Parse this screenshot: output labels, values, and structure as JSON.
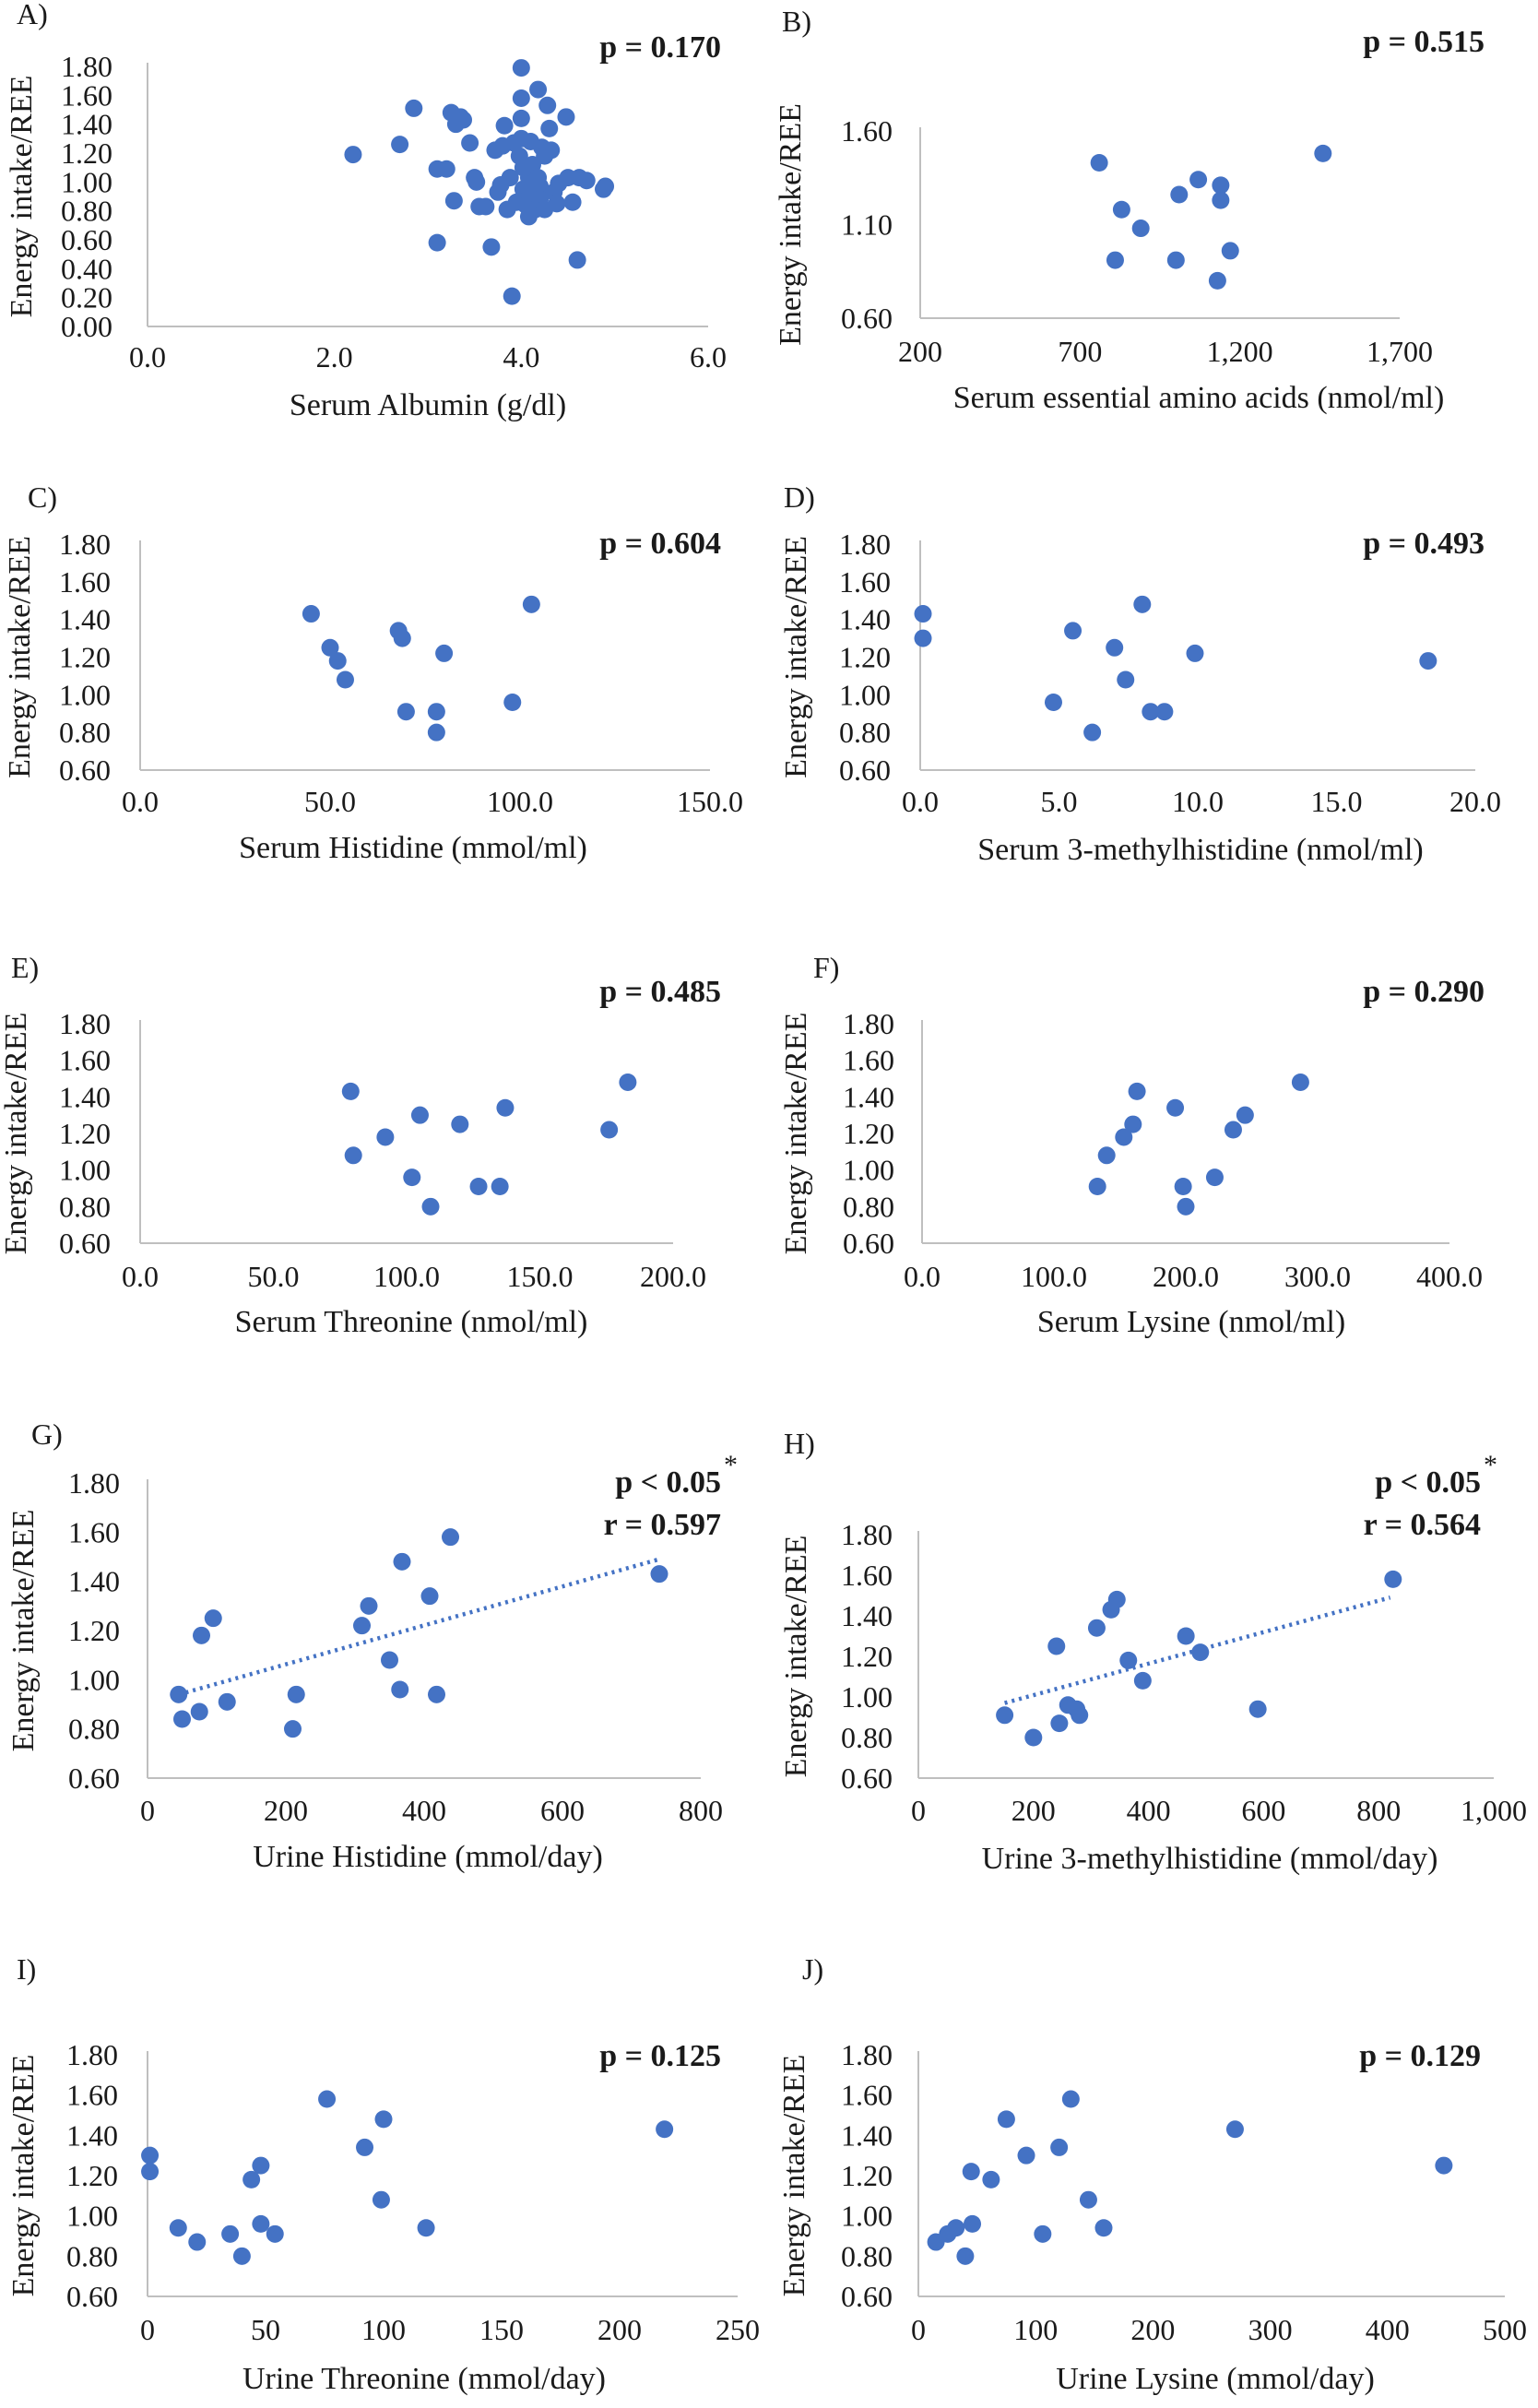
{
  "colors": {
    "marker": "#4472c4",
    "trend": "#4472c4",
    "axis": "#bfbfbf",
    "text": "#1a1a1a"
  },
  "chart_data": [
    {
      "id": "A",
      "type": "scatter",
      "panel_label": "A)",
      "xlabel": "Serum Albumin (g/dl)",
      "ylabel": "Energy intake/REE",
      "xlim": [
        0,
        6
      ],
      "ylim": [
        0,
        1.8
      ],
      "xticks": [
        "0.0",
        "2.0",
        "4.0",
        "6.0"
      ],
      "yticks": [
        "0.00",
        "0.20",
        "0.40",
        "0.60",
        "0.80",
        "1.00",
        "1.20",
        "1.40",
        "1.60",
        "1.80"
      ],
      "stat_lines": [
        {
          "text": "p = 0.170"
        }
      ],
      "points": [
        [
          2.2,
          1.19
        ],
        [
          2.7,
          1.26
        ],
        [
          2.85,
          1.51
        ],
        [
          3.1,
          0.58
        ],
        [
          3.1,
          1.09
        ],
        [
          3.2,
          1.09
        ],
        [
          3.25,
          1.48
        ],
        [
          3.28,
          0.87
        ],
        [
          3.3,
          1.4
        ],
        [
          3.35,
          1.45
        ],
        [
          3.38,
          1.43
        ],
        [
          3.45,
          1.27
        ],
        [
          3.5,
          1.03
        ],
        [
          3.52,
          1.0
        ],
        [
          3.55,
          0.83
        ],
        [
          3.62,
          0.83
        ],
        [
          3.68,
          0.55
        ],
        [
          3.72,
          1.22
        ],
        [
          3.75,
          0.93
        ],
        [
          3.78,
          0.98
        ],
        [
          3.8,
          1.25
        ],
        [
          3.82,
          1.39
        ],
        [
          3.85,
          0.81
        ],
        [
          3.88,
          1.03
        ],
        [
          3.9,
          0.21
        ],
        [
          3.92,
          1.27
        ],
        [
          3.95,
          0.86
        ],
        [
          3.98,
          1.18
        ],
        [
          4.0,
          1.79
        ],
        [
          4.0,
          1.58
        ],
        [
          4.0,
          1.44
        ],
        [
          4.0,
          1.3
        ],
        [
          4.02,
          1.1
        ],
        [
          4.02,
          0.95
        ],
        [
          4.05,
          0.87
        ],
        [
          4.05,
          0.84
        ],
        [
          4.08,
          1.03
        ],
        [
          4.08,
          0.76
        ],
        [
          4.1,
          1.28
        ],
        [
          4.12,
          1.12
        ],
        [
          4.12,
          0.99
        ],
        [
          4.15,
          0.9
        ],
        [
          4.15,
          0.81
        ],
        [
          4.18,
          1.64
        ],
        [
          4.18,
          1.03
        ],
        [
          4.2,
          0.97
        ],
        [
          4.2,
          0.88
        ],
        [
          4.22,
          1.24
        ],
        [
          4.25,
          0.81
        ],
        [
          4.25,
          1.18
        ],
        [
          4.28,
          1.53
        ],
        [
          4.3,
          1.37
        ],
        [
          4.32,
          1.22
        ],
        [
          4.35,
          0.93
        ],
        [
          4.38,
          0.85
        ],
        [
          4.4,
          0.99
        ],
        [
          4.48,
          1.45
        ],
        [
          4.5,
          1.03
        ],
        [
          4.55,
          0.86
        ],
        [
          4.6,
          0.46
        ],
        [
          4.62,
          1.03
        ],
        [
          4.7,
          1.01
        ],
        [
          4.88,
          0.95
        ],
        [
          4.9,
          0.97
        ]
      ]
    },
    {
      "id": "B",
      "type": "scatter",
      "panel_label": "B)",
      "xlabel": "Serum essential amino acids (nmol/ml)",
      "ylabel": "Energy intake/REE",
      "xlim": [
        200,
        1700
      ],
      "ylim": [
        0.6,
        1.6
      ],
      "xticks": [
        "200",
        "700",
        "1,200",
        "1,700"
      ],
      "yticks": [
        "0.60",
        "1.10",
        "1.60"
      ],
      "stat_lines": [
        {
          "text": "p = 0.515"
        }
      ],
      "points": [
        [
          760,
          1.43
        ],
        [
          810,
          0.91
        ],
        [
          830,
          1.18
        ],
        [
          890,
          1.08
        ],
        [
          1000,
          0.91
        ],
        [
          1010,
          1.26
        ],
        [
          1070,
          1.34
        ],
        [
          1130,
          0.8
        ],
        [
          1140,
          1.23
        ],
        [
          1140,
          1.31
        ],
        [
          1170,
          0.96
        ],
        [
          1460,
          1.48
        ]
      ]
    },
    {
      "id": "C",
      "type": "scatter",
      "panel_label": "C)",
      "xlabel": "Serum Histidine (mmol/ml)",
      "ylabel": "Energy intake/REE",
      "xlim": [
        0,
        150
      ],
      "ylim": [
        0.6,
        1.8
      ],
      "xticks": [
        "0.0",
        "50.0",
        "100.0",
        "150.0"
      ],
      "yticks": [
        "0.60",
        "0.80",
        "1.00",
        "1.20",
        "1.40",
        "1.60",
        "1.80"
      ],
      "stat_lines": [
        {
          "text": "p = 0.604"
        }
      ],
      "points": [
        [
          45,
          1.43
        ],
        [
          50,
          1.25
        ],
        [
          52,
          1.18
        ],
        [
          54,
          1.08
        ],
        [
          68,
          1.34
        ],
        [
          69,
          1.3
        ],
        [
          70,
          0.91
        ],
        [
          78,
          0.91
        ],
        [
          78,
          0.8
        ],
        [
          80,
          1.22
        ],
        [
          98,
          0.96
        ],
        [
          103,
          1.48
        ]
      ]
    },
    {
      "id": "D",
      "type": "scatter",
      "panel_label": "D)",
      "xlabel": "Serum 3-methylhistidine (nmol/ml)",
      "ylabel": "Energy intake/REE",
      "xlim": [
        0,
        20
      ],
      "ylim": [
        0.6,
        1.8
      ],
      "xticks": [
        "0.0",
        "5.0",
        "10.0",
        "15.0",
        "20.0"
      ],
      "yticks": [
        "0.60",
        "0.80",
        "1.00",
        "1.20",
        "1.40",
        "1.60",
        "1.80"
      ],
      "stat_lines": [
        {
          "text": "p = 0.493"
        }
      ],
      "points": [
        [
          0.1,
          1.43
        ],
        [
          0.1,
          1.3
        ],
        [
          4.8,
          0.96
        ],
        [
          5.5,
          1.34
        ],
        [
          6.2,
          0.8
        ],
        [
          7.0,
          1.25
        ],
        [
          7.4,
          1.08
        ],
        [
          8.0,
          1.48
        ],
        [
          8.3,
          0.91
        ],
        [
          8.8,
          0.91
        ],
        [
          9.9,
          1.22
        ],
        [
          18.3,
          1.18
        ]
      ]
    },
    {
      "id": "E",
      "type": "scatter",
      "panel_label": "E)",
      "xlabel": "Serum Threonine (nmol/ml)",
      "ylabel": "Energy intake/REE",
      "xlim": [
        0,
        200
      ],
      "ylim": [
        0.6,
        1.8
      ],
      "xticks": [
        "0.0",
        "50.0",
        "100.0",
        "150.0",
        "200.0"
      ],
      "yticks": [
        "0.60",
        "0.80",
        "1.00",
        "1.20",
        "1.40",
        "1.60",
        "1.80"
      ],
      "stat_lines": [
        {
          "text": "p = 0.485"
        }
      ],
      "points": [
        [
          79,
          1.43
        ],
        [
          80,
          1.08
        ],
        [
          92,
          1.18
        ],
        [
          102,
          0.96
        ],
        [
          105,
          1.3
        ],
        [
          109,
          0.8
        ],
        [
          120,
          1.25
        ],
        [
          127,
          0.91
        ],
        [
          135,
          0.91
        ],
        [
          137,
          1.34
        ],
        [
          176,
          1.22
        ],
        [
          183,
          1.48
        ]
      ]
    },
    {
      "id": "F",
      "type": "scatter",
      "panel_label": "F)",
      "xlabel": "Serum Lysine (nmol/ml)",
      "ylabel": "Energy intake/REE",
      "xlim": [
        0,
        400
      ],
      "ylim": [
        0.6,
        1.8
      ],
      "xticks": [
        "0.0",
        "100.0",
        "200.0",
        "300.0",
        "400.0"
      ],
      "yticks": [
        "0.60",
        "0.80",
        "1.00",
        "1.20",
        "1.40",
        "1.60",
        "1.80"
      ],
      "stat_lines": [
        {
          "text": "p = 0.290"
        }
      ],
      "points": [
        [
          133,
          0.91
        ],
        [
          140,
          1.08
        ],
        [
          153,
          1.18
        ],
        [
          160,
          1.25
        ],
        [
          163,
          1.43
        ],
        [
          192,
          1.34
        ],
        [
          198,
          0.91
        ],
        [
          200,
          0.8
        ],
        [
          222,
          0.96
        ],
        [
          236,
          1.22
        ],
        [
          245,
          1.3
        ],
        [
          287,
          1.48
        ]
      ]
    },
    {
      "id": "G",
      "type": "scatter",
      "panel_label": "G)",
      "xlabel": "Urine Histidine (mmol/day)",
      "ylabel": "Energy intake/REE",
      "xlim": [
        0,
        800
      ],
      "ylim": [
        0.6,
        1.8
      ],
      "xticks": [
        "0",
        "200",
        "400",
        "600",
        "800"
      ],
      "yticks": [
        "0.60",
        "0.80",
        "1.00",
        "1.20",
        "1.40",
        "1.60",
        "1.80"
      ],
      "stat_lines": [
        {
          "text": "p < 0.05",
          "sup": "*"
        },
        {
          "text": "r = 0.597"
        }
      ],
      "trendline": {
        "x": [
          45,
          740
        ],
        "y": [
          0.94,
          1.49
        ]
      },
      "points": [
        [
          45,
          0.94
        ],
        [
          50,
          0.84
        ],
        [
          75,
          0.87
        ],
        [
          78,
          1.18
        ],
        [
          95,
          1.25
        ],
        [
          115,
          0.91
        ],
        [
          210,
          0.8
        ],
        [
          215,
          0.94
        ],
        [
          310,
          1.22
        ],
        [
          320,
          1.3
        ],
        [
          350,
          1.08
        ],
        [
          365,
          0.96
        ],
        [
          368,
          1.48
        ],
        [
          408,
          1.34
        ],
        [
          418,
          0.94
        ],
        [
          438,
          1.58
        ],
        [
          740,
          1.43
        ]
      ]
    },
    {
      "id": "H",
      "type": "scatter",
      "panel_label": "H)",
      "xlabel": "Urine 3-methylhistidine (mmol/day)",
      "ylabel": "Energy intake/REE",
      "xlim": [
        0,
        1000
      ],
      "ylim": [
        0.6,
        1.8
      ],
      "xticks": [
        "0",
        "200",
        "400",
        "600",
        "800",
        "1,000"
      ],
      "yticks": [
        "0.60",
        "0.80",
        "1.00",
        "1.20",
        "1.40",
        "1.60",
        "1.80"
      ],
      "stat_lines": [
        {
          "text": "p < 0.05",
          "sup": "*"
        },
        {
          "text": "r = 0.564"
        }
      ],
      "trendline": {
        "x": [
          150,
          820
        ],
        "y": [
          0.97,
          1.49
        ]
      },
      "points": [
        [
          150,
          0.91
        ],
        [
          200,
          0.8
        ],
        [
          240,
          1.25
        ],
        [
          245,
          0.87
        ],
        [
          260,
          0.96
        ],
        [
          275,
          0.94
        ],
        [
          280,
          0.91
        ],
        [
          310,
          1.34
        ],
        [
          335,
          1.43
        ],
        [
          345,
          1.48
        ],
        [
          365,
          1.18
        ],
        [
          390,
          1.08
        ],
        [
          465,
          1.3
        ],
        [
          490,
          1.22
        ],
        [
          590,
          0.94
        ],
        [
          825,
          1.58
        ]
      ]
    },
    {
      "id": "I",
      "type": "scatter",
      "panel_label": "I)",
      "xlabel": "Urine Threonine (mmol/day)",
      "ylabel": "Energy intake/REE",
      "xlim": [
        0,
        250
      ],
      "ylim": [
        0.6,
        1.8
      ],
      "xticks": [
        "0",
        "50",
        "100",
        "150",
        "200",
        "250"
      ],
      "yticks": [
        "0.60",
        "0.80",
        "1.00",
        "1.20",
        "1.40",
        "1.60",
        "1.80"
      ],
      "stat_lines": [
        {
          "text": "p = 0.125"
        }
      ],
      "points": [
        [
          1,
          1.3
        ],
        [
          1,
          1.22
        ],
        [
          13,
          0.94
        ],
        [
          21,
          0.87
        ],
        [
          35,
          0.91
        ],
        [
          40,
          0.8
        ],
        [
          44,
          1.18
        ],
        [
          48,
          1.25
        ],
        [
          48,
          0.96
        ],
        [
          54,
          0.91
        ],
        [
          76,
          1.58
        ],
        [
          92,
          1.34
        ],
        [
          99,
          1.08
        ],
        [
          100,
          1.48
        ],
        [
          118,
          0.94
        ],
        [
          219,
          1.43
        ]
      ]
    },
    {
      "id": "J",
      "type": "scatter",
      "panel_label": "J)",
      "xlabel": "Urine Lysine (mmol/day)",
      "ylabel": "Energy intake/REE",
      "xlim": [
        0,
        500
      ],
      "ylim": [
        0.6,
        1.8
      ],
      "xticks": [
        "0",
        "100",
        "200",
        "300",
        "400",
        "500"
      ],
      "yticks": [
        "0.60",
        "0.80",
        "1.00",
        "1.20",
        "1.40",
        "1.60",
        "1.80"
      ],
      "stat_lines": [
        {
          "text": "p = 0.129"
        }
      ],
      "points": [
        [
          15,
          0.87
        ],
        [
          25,
          0.91
        ],
        [
          32,
          0.94
        ],
        [
          40,
          0.8
        ],
        [
          45,
          1.22
        ],
        [
          46,
          0.96
        ],
        [
          62,
          1.18
        ],
        [
          75,
          1.48
        ],
        [
          92,
          1.3
        ],
        [
          106,
          0.91
        ],
        [
          120,
          1.34
        ],
        [
          130,
          1.58
        ],
        [
          145,
          1.08
        ],
        [
          158,
          0.94
        ],
        [
          270,
          1.43
        ],
        [
          448,
          1.25
        ]
      ]
    }
  ]
}
